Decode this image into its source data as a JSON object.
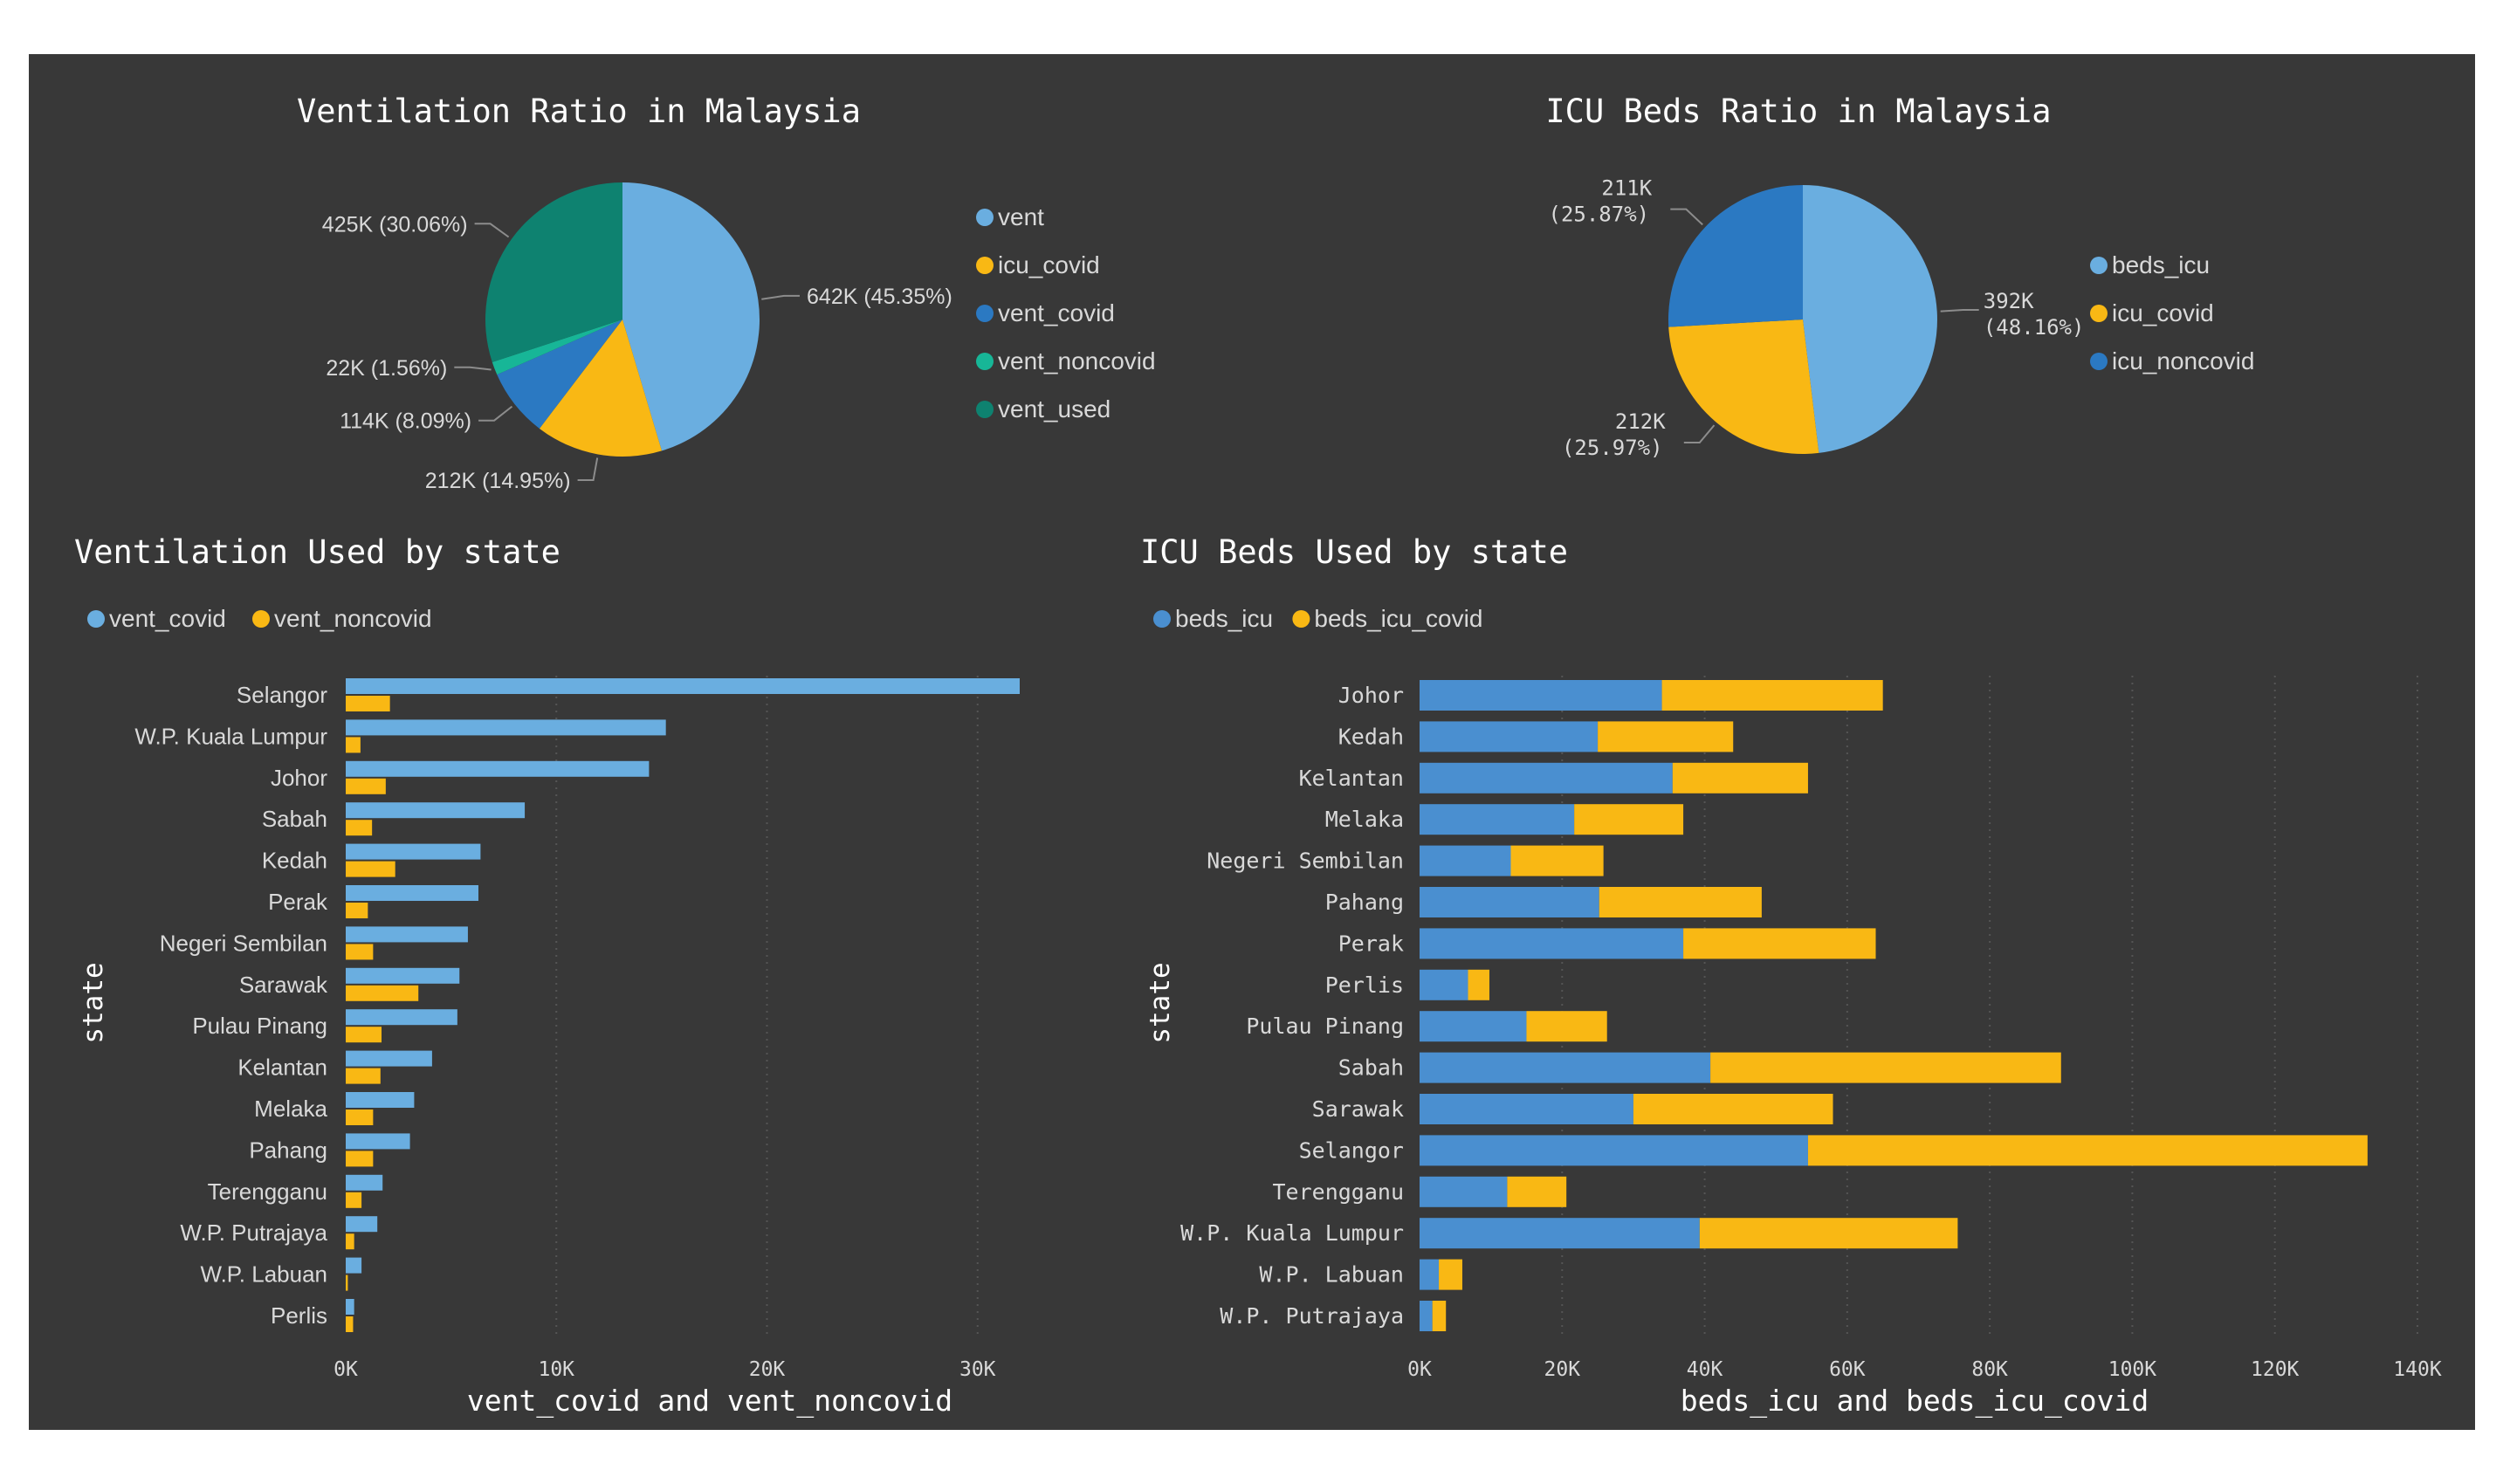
{
  "colors": {
    "background": "#383838",
    "text": "#ffffff",
    "label": "#d9d9d9",
    "leader": "#8c8c8c",
    "grid": "#555555"
  },
  "chart_data": [
    {
      "type": "pie",
      "title": "Ventilation Ratio in Malaysia",
      "labels": [
        "vent",
        "icu_covid",
        "vent_covid",
        "vent_noncovid",
        "vent_used"
      ],
      "values": [
        642,
        212,
        114,
        22,
        425
      ],
      "data_labels": [
        "642K (45.35%)",
        "212K (14.95%)",
        "114K (8.09%)",
        "22K (1.56%)",
        "425K (30.06%)"
      ],
      "colors": [
        "#6aaee0",
        "#f9b814",
        "#2b79c2",
        "#17b697",
        "#0e8270"
      ],
      "legend": "right"
    },
    {
      "type": "pie",
      "title": "ICU Beds Ratio in Malaysia",
      "labels": [
        "beds_icu",
        "icu_covid",
        "icu_noncovid"
      ],
      "values": [
        392,
        212,
        211
      ],
      "data_labels": [
        [
          "392K",
          "(48.16%)"
        ],
        [
          "212K",
          "(25.97%)"
        ],
        [
          "211K",
          "(25.87%)"
        ]
      ],
      "colors": [
        "#6aaee0",
        "#f9b814",
        "#2b79c2"
      ],
      "legend": "right"
    },
    {
      "type": "bar",
      "orientation": "horizontal",
      "title": "Ventilation Used by state",
      "ylabel": "state",
      "xlabel": "vent_covid and vent_noncovid",
      "xlim": [
        0,
        32000
      ],
      "xticks": [
        0,
        10000,
        20000,
        30000
      ],
      "xtick_labels": [
        "0K",
        "10K",
        "20K",
        "30K"
      ],
      "grid": true,
      "legend": "top-left",
      "categories": [
        "Selangor",
        "W.P. Kuala Lumpur",
        "Johor",
        "Sabah",
        "Kedah",
        "Perak",
        "Negeri Sembilan",
        "Sarawak",
        "Pulau Pinang",
        "Kelantan",
        "Melaka",
        "Pahang",
        "Terengganu",
        "W.P. Putrajaya",
        "W.P. Labuan",
        "Perlis"
      ],
      "series": [
        {
          "name": "vent_covid",
          "color": "#6aaee0",
          "values": [
            32000,
            15200,
            14400,
            8500,
            6400,
            6300,
            5800,
            5400,
            5300,
            4100,
            3250,
            3050,
            1750,
            1500,
            750,
            400
          ]
        },
        {
          "name": "vent_noncovid",
          "color": "#f9b814",
          "values": [
            2100,
            700,
            1900,
            1250,
            2350,
            1050,
            1300,
            3450,
            1700,
            1650,
            1300,
            1300,
            750,
            400,
            100,
            350
          ]
        }
      ]
    },
    {
      "type": "bar",
      "orientation": "horizontal",
      "stacked": true,
      "title": "ICU Beds Used by state",
      "ylabel": "state",
      "xlabel": "beds_icu and beds_icu_covid",
      "xlim": [
        0,
        140000
      ],
      "xticks": [
        0,
        20000,
        40000,
        60000,
        80000,
        100000,
        120000,
        140000
      ],
      "xtick_labels": [
        "0K",
        "20K",
        "40K",
        "60K",
        "80K",
        "100K",
        "120K",
        "140K"
      ],
      "grid": true,
      "legend": "top-left",
      "categories": [
        "Johor",
        "Kedah",
        "Kelantan",
        "Melaka",
        "Negeri Sembilan",
        "Pahang",
        "Perak",
        "Perlis",
        "Pulau Pinang",
        "Sabah",
        "Sarawak",
        "Selangor",
        "Terengganu",
        "W.P. Kuala Lumpur",
        "W.P. Labuan",
        "W.P. Putrajaya"
      ],
      "series": [
        {
          "name": "beds_icu",
          "color": "#4a8fd0",
          "values": [
            34000,
            25000,
            35500,
            21700,
            12800,
            25200,
            37000,
            6800,
            15000,
            40800,
            30000,
            54500,
            12300,
            39300,
            2700,
            1800
          ]
        },
        {
          "name": "beds_icu_covid",
          "color": "#f9b814",
          "values": [
            31000,
            19000,
            19000,
            15300,
            13000,
            22800,
            27000,
            3000,
            11300,
            49200,
            28000,
            78500,
            8300,
            36200,
            3300,
            1900
          ]
        }
      ]
    }
  ]
}
